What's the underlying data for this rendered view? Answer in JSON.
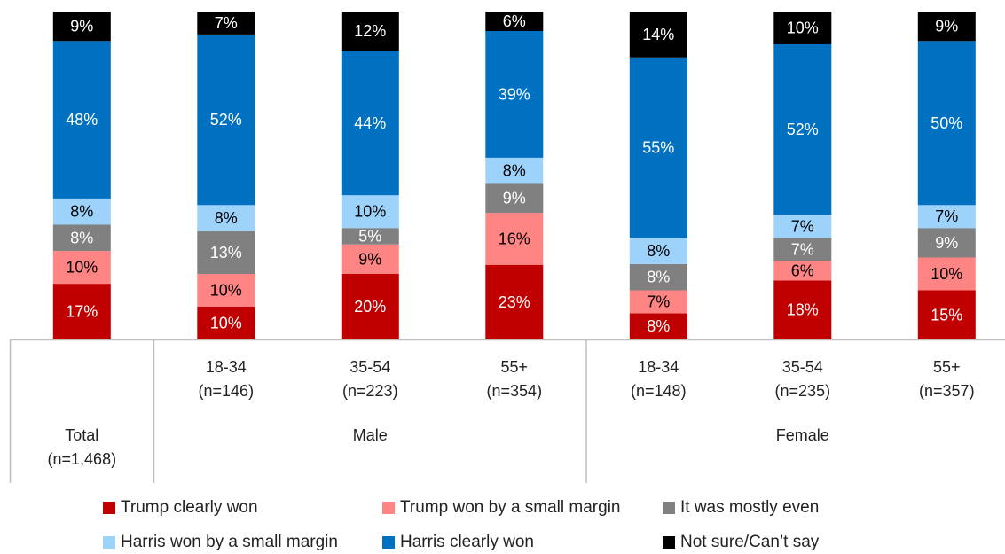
{
  "chart_data": {
    "type": "bar",
    "stacked": true,
    "ylim": [
      0,
      100
    ],
    "categories": [
      {
        "lines": [
          "Total",
          "(n=1,468)"
        ],
        "group": "Total"
      },
      {
        "lines": [
          "18-34",
          "(n=146)"
        ],
        "group": "Male"
      },
      {
        "lines": [
          "35-54",
          "(n=223)"
        ],
        "group": "Male"
      },
      {
        "lines": [
          "55+",
          "(n=354)"
        ],
        "group": "Male"
      },
      {
        "lines": [
          "18-34",
          "(n=148)"
        ],
        "group": "Female"
      },
      {
        "lines": [
          "35-54",
          "(n=235)"
        ],
        "group": "Female"
      },
      {
        "lines": [
          "55+",
          "(n=357)"
        ],
        "group": "Female"
      }
    ],
    "groups": [
      "Male",
      "Female"
    ],
    "series": [
      {
        "name": "Trump clearly won",
        "color": "#c00000",
        "label_color": "#ffffff",
        "values": [
          17,
          10,
          20,
          23,
          8,
          18,
          15
        ]
      },
      {
        "name": "Trump won by a small margin",
        "color": "#ff8585",
        "label_color": "#000000",
        "values": [
          10,
          10,
          9,
          16,
          7,
          6,
          10
        ]
      },
      {
        "name": "It was mostly even",
        "color": "#808080",
        "label_color": "#ffffff",
        "values": [
          8,
          13,
          5,
          9,
          8,
          7,
          9
        ]
      },
      {
        "name": "Harris won by a small margin",
        "color": "#9dd3fb",
        "label_color": "#000000",
        "values": [
          8,
          8,
          10,
          8,
          8,
          7,
          7
        ]
      },
      {
        "name": "Harris clearly won",
        "color": "#0070c0",
        "label_color": "#ffffff",
        "values": [
          48,
          52,
          44,
          39,
          55,
          52,
          50
        ]
      },
      {
        "name": "Not sure/Can’t say",
        "color": "#000000",
        "label_color": "#ffffff",
        "values": [
          9,
          7,
          12,
          6,
          14,
          10,
          9
        ]
      }
    ],
    "legend_position": "bottom"
  }
}
